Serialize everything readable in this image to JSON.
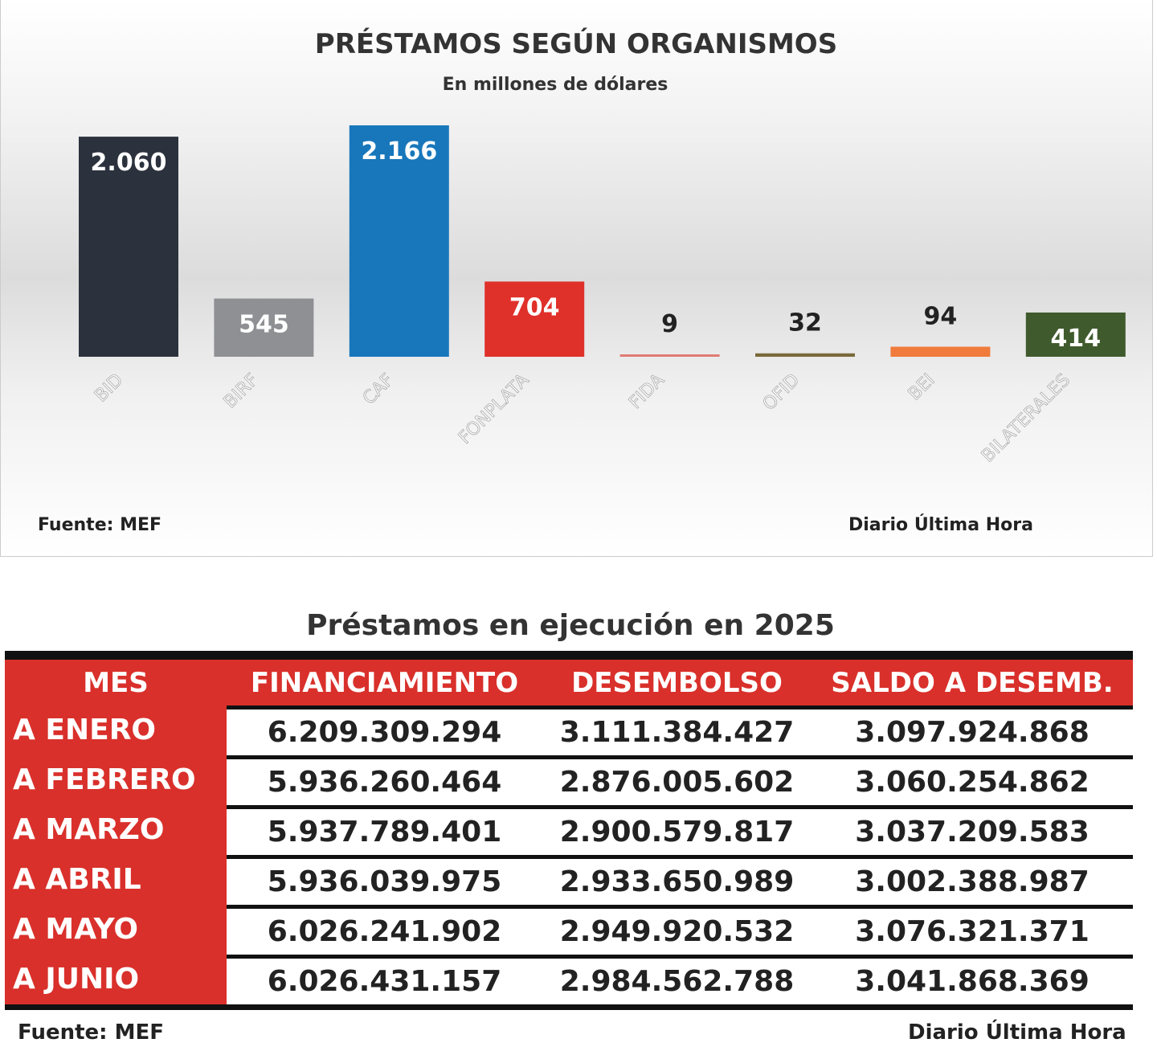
{
  "chart_data": {
    "type": "bar",
    "title": "PRÉSTAMOS SEGÚN ORGANISMOS",
    "subtitle": "En millones de dólares",
    "categories": [
      "BID",
      "BIRF",
      "CAF",
      "FONPLATA",
      "FIDA",
      "OFID",
      "BEI",
      "BILATERALES"
    ],
    "values": [
      2060,
      545,
      2166,
      704,
      9,
      32,
      94,
      414
    ],
    "value_labels": [
      "2.060",
      "545",
      "2.166",
      "704",
      "9",
      "32",
      "94",
      "414"
    ],
    "colors": [
      "#2b323d",
      "#8e9094",
      "#1877bb",
      "#e0302a",
      "#e07a72",
      "#7a6a3a",
      "#f07b3c",
      "#3f5a2c"
    ],
    "ylim": [
      0,
      2200
    ],
    "grid": false,
    "source": "Fuente: MEF",
    "credit": "Diario Última Hora"
  },
  "table": {
    "title": "Préstamos en ejecución en 2025",
    "headers": [
      "MES",
      "FINANCIAMIENTO",
      "DESEMBOLSO",
      "SALDO A DESEMB."
    ],
    "rows": [
      [
        "A ENERO",
        "6.209.309.294",
        "3.111.384.427",
        "3.097.924.868"
      ],
      [
        "A FEBRERO",
        "5.936.260.464",
        "2.876.005.602",
        "3.060.254.862"
      ],
      [
        "A MARZO",
        "5.937.789.401",
        "2.900.579.817",
        "3.037.209.583"
      ],
      [
        "A ABRIL",
        "5.936.039.975",
        "2.933.650.989",
        "3.002.388.987"
      ],
      [
        "A MAYO",
        "6.026.241.902",
        "2.949.920.532",
        "3.076.321.371"
      ],
      [
        "A JUNIO",
        "6.026.431.157",
        "2.984.562.788",
        "3.041.868.369"
      ]
    ],
    "source": "Fuente: MEF",
    "credit": "Diario Última Hora"
  }
}
